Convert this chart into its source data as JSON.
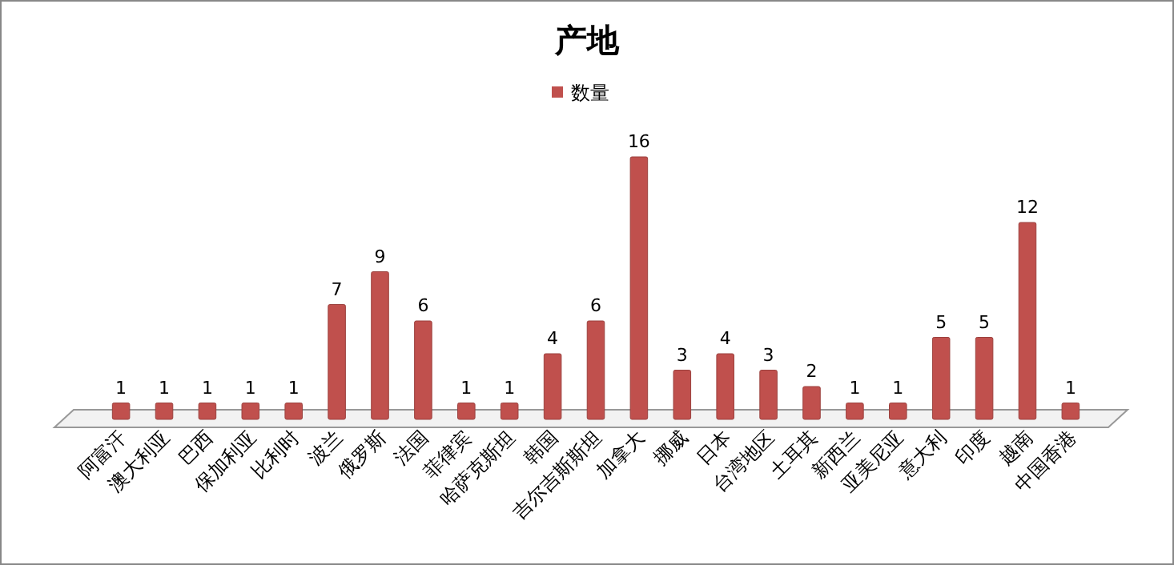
{
  "chart_data": {
    "type": "bar",
    "title": "产地",
    "categories": [
      "阿富汗",
      "澳大利亚",
      "巴西",
      "保加利亚",
      "比利时",
      "波兰",
      "俄罗斯",
      "法国",
      "菲律宾",
      "哈萨克斯坦",
      "韩国",
      "吉尔吉斯斯坦",
      "加拿大",
      "挪威",
      "日本",
      "台湾地区",
      "土耳其",
      "新西兰",
      "亚美尼亚",
      "意大利",
      "印度",
      "越南",
      "中国香港"
    ],
    "series": [
      {
        "name": "数量",
        "color": "#c0504d",
        "values": [
          1,
          1,
          1,
          1,
          1,
          7,
          9,
          6,
          1,
          1,
          4,
          6,
          16,
          3,
          4,
          3,
          2,
          1,
          1,
          5,
          5,
          12,
          1
        ]
      }
    ],
    "data_labels": true,
    "legend": "top",
    "grid": false
  }
}
